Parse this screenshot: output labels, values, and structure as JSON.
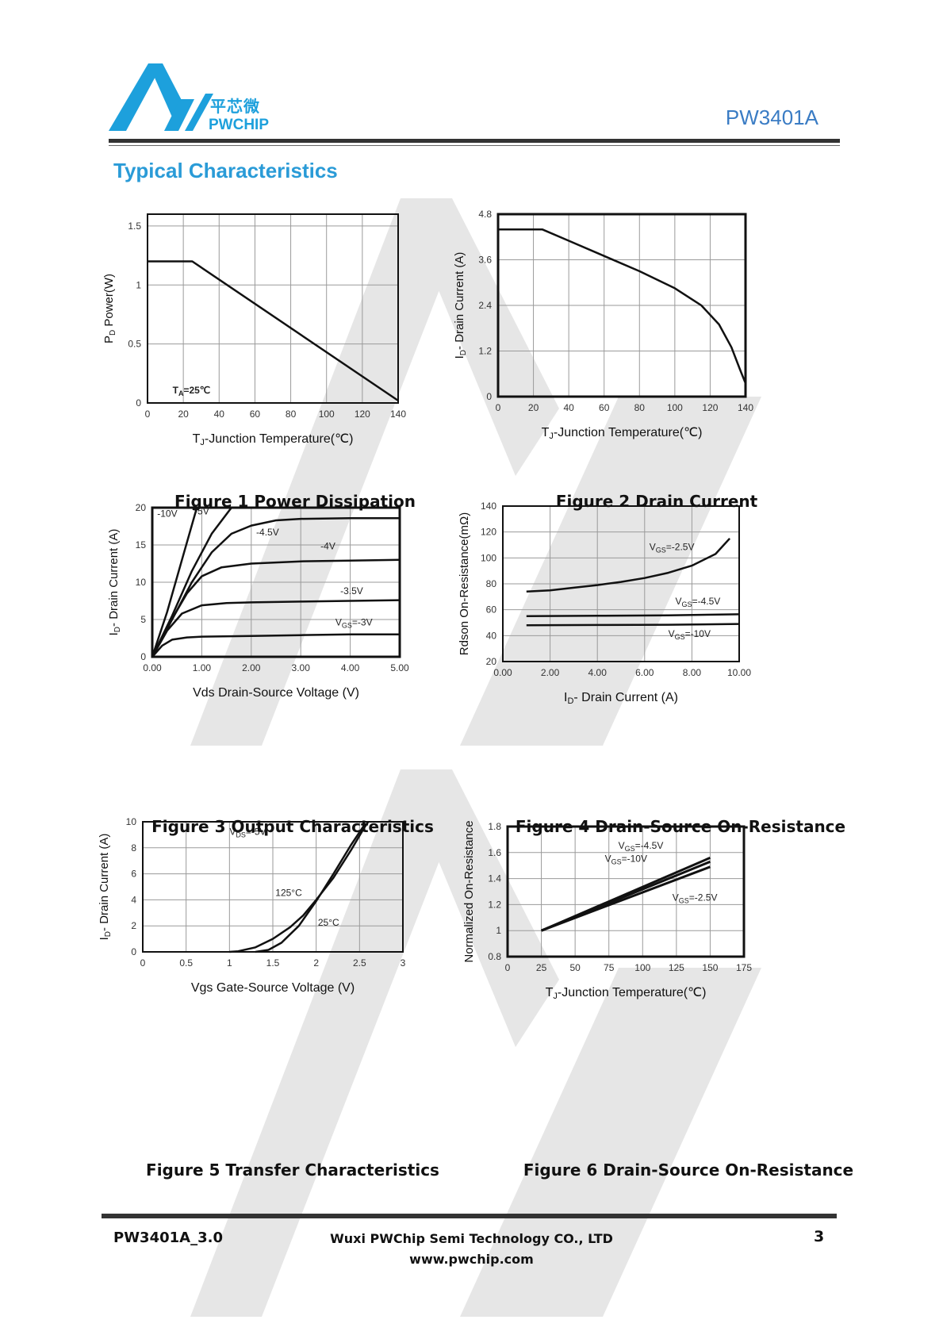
{
  "header": {
    "logo_cn": "平芯微",
    "logo_en": "PWCHIP",
    "part_number": "PW3401A",
    "brand_color": "#1da0dc",
    "part_color": "#3a7cc4"
  },
  "section_title": "Typical Characteristics",
  "footer": {
    "doc_id": "PW3401A_3.0",
    "company": "Wuxi PWChip Semi Technology CO., LTD",
    "url": "www.pwchip.com",
    "page": "3"
  },
  "chart_data": [
    {
      "id": "fig1",
      "type": "line",
      "caption": "Figure 1 Power Dissipation",
      "xlabel": "TJ-Junction Temperature(℃)",
      "ylabel": "PD Power(W)",
      "xlim": [
        0,
        140
      ],
      "ylim": [
        0,
        1.6
      ],
      "xticks": [
        0,
        20,
        40,
        60,
        80,
        100,
        120,
        140
      ],
      "xtick_labels": [
        "0",
        "20",
        "40",
        "60",
        "80",
        "100",
        "120",
        "140"
      ],
      "yticks": [
        0,
        0.5,
        1,
        1.5
      ],
      "ytick_labels": [
        "0",
        "0.5",
        "1",
        "1.5"
      ],
      "grid": true,
      "annotations": [
        {
          "text": "TA=25℃",
          "x": 14,
          "y": 0.08
        }
      ],
      "series": [
        {
          "points": [
            [
              0,
              1.2
            ],
            [
              25,
              1.2
            ],
            [
              140,
              0.02
            ]
          ]
        }
      ]
    },
    {
      "id": "fig2",
      "type": "line",
      "caption": "Figure 2 Drain Current",
      "xlabel": "TJ-Junction Temperature(℃)",
      "ylabel": "ID- Drain Current (A)",
      "xlim": [
        0,
        140
      ],
      "ylim": [
        0,
        4.8
      ],
      "xticks": [
        0,
        20,
        40,
        60,
        80,
        100,
        120,
        140
      ],
      "xtick_labels": [
        "0",
        "20",
        "40",
        "60",
        "80",
        "100",
        "120",
        "140"
      ],
      "yticks": [
        0,
        1.2,
        2.4,
        3.6,
        4.8
      ],
      "ytick_labels": [
        "0",
        "1.2",
        "2.4",
        "3.6",
        "4.8"
      ],
      "grid": true,
      "annotations": [],
      "series": [
        {
          "points": [
            [
              0,
              4.4
            ],
            [
              25,
              4.4
            ],
            [
              40,
              4.1
            ],
            [
              60,
              3.7
            ],
            [
              80,
              3.3
            ],
            [
              100,
              2.85
            ],
            [
              115,
              2.4
            ],
            [
              125,
              1.9
            ],
            [
              132,
              1.3
            ],
            [
              137,
              0.7
            ],
            [
              140,
              0.35
            ]
          ]
        }
      ]
    },
    {
      "id": "fig3",
      "type": "line",
      "caption": "Figure 3 Output Characteristics",
      "xlabel": "Vds Drain-Source Voltage (V)",
      "ylabel": "ID- Drain Current (A)",
      "xlim": [
        0,
        5
      ],
      "ylim": [
        0,
        20
      ],
      "xticks": [
        0,
        1,
        2,
        3,
        4,
        5
      ],
      "xtick_labels": [
        "0.00",
        "1.00",
        "2.00",
        "3.00",
        "4.00",
        "5.00"
      ],
      "yticks": [
        0,
        5,
        10,
        15,
        20
      ],
      "ytick_labels": [
        "0",
        "5",
        "10",
        "15",
        "20"
      ],
      "grid": true,
      "annotations": [
        {
          "text": "-10V",
          "x": 0.1,
          "y": 18.8
        },
        {
          "text": "-5V",
          "x": 0.85,
          "y": 19.1
        },
        {
          "text": "-4.5V",
          "x": 2.1,
          "y": 16.3
        },
        {
          "text": "-4V",
          "x": 3.4,
          "y": 14.4
        },
        {
          "text": "-3.5V",
          "x": 3.8,
          "y": 8.4
        },
        {
          "text": "VGS=-3V",
          "x": 3.7,
          "y": 4.2
        }
      ],
      "series": [
        {
          "name": "-10V",
          "points": [
            [
              0,
              0
            ],
            [
              0.3,
              6
            ],
            [
              0.6,
              13
            ],
            [
              0.9,
              20
            ]
          ]
        },
        {
          "name": "-5V",
          "points": [
            [
              0,
              0
            ],
            [
              0.4,
              5.5
            ],
            [
              0.8,
              11.5
            ],
            [
              1.2,
              16.5
            ],
            [
              1.6,
              20
            ]
          ]
        },
        {
          "name": "-4.5V",
          "points": [
            [
              0,
              0
            ],
            [
              0.4,
              5
            ],
            [
              0.8,
              10
            ],
            [
              1.2,
              14
            ],
            [
              1.6,
              16.5
            ],
            [
              2.0,
              17.6
            ],
            [
              2.5,
              18.3
            ],
            [
              3.0,
              18.5
            ],
            [
              4.0,
              18.6
            ],
            [
              5.0,
              18.6
            ]
          ]
        },
        {
          "name": "-4V",
          "points": [
            [
              0,
              0
            ],
            [
              0.35,
              4.5
            ],
            [
              0.7,
              8.5
            ],
            [
              1.0,
              10.8
            ],
            [
              1.4,
              12
            ],
            [
              2.0,
              12.5
            ],
            [
              3.0,
              12.8
            ],
            [
              4.0,
              12.9
            ],
            [
              5.0,
              13.0
            ]
          ]
        },
        {
          "name": "-3.5V",
          "points": [
            [
              0,
              0
            ],
            [
              0.3,
              3.5
            ],
            [
              0.6,
              5.8
            ],
            [
              1.0,
              6.9
            ],
            [
              1.5,
              7.2
            ],
            [
              2.0,
              7.3
            ],
            [
              3.0,
              7.4
            ],
            [
              4.0,
              7.5
            ],
            [
              5.0,
              7.6
            ]
          ]
        },
        {
          "name": "-3V",
          "points": [
            [
              0,
              0
            ],
            [
              0.2,
              1.5
            ],
            [
              0.4,
              2.3
            ],
            [
              0.7,
              2.6
            ],
            [
              1.0,
              2.7
            ],
            [
              2.0,
              2.8
            ],
            [
              3.0,
              2.9
            ],
            [
              4.0,
              3.0
            ],
            [
              5.0,
              3.0
            ]
          ]
        }
      ]
    },
    {
      "id": "fig4",
      "type": "line",
      "caption": "Figure 4 Drain-Source On-Resistance",
      "xlabel": "ID- Drain Current (A)",
      "ylabel": "Rdson On-Resistance(mΩ)",
      "xlim": [
        0,
        10
      ],
      "ylim": [
        20,
        140
      ],
      "xticks": [
        0,
        2,
        4,
        6,
        8,
        10
      ],
      "xtick_labels": [
        "0.00",
        "2.00",
        "4.00",
        "6.00",
        "8.00",
        "10.00"
      ],
      "yticks": [
        20,
        40,
        60,
        80,
        100,
        120,
        140
      ],
      "ytick_labels": [
        "20",
        "40",
        "60",
        "80",
        "100",
        "120",
        "140"
      ],
      "grid": true,
      "annotations": [
        {
          "text": "VGS=-2.5V",
          "x": 6.2,
          "y": 106
        },
        {
          "text": "VGS=-4.5V",
          "x": 7.3,
          "y": 64
        },
        {
          "text": "VGS=-10V",
          "x": 7.0,
          "y": 39
        }
      ],
      "series": [
        {
          "name": "VGS=-2.5V",
          "points": [
            [
              1,
              74
            ],
            [
              2,
              75
            ],
            [
              3,
              77
            ],
            [
              4,
              79
            ],
            [
              5,
              81.5
            ],
            [
              6,
              84.5
            ],
            [
              7,
              88.5
            ],
            [
              8,
              94
            ],
            [
              9,
              103
            ],
            [
              9.6,
              115
            ]
          ]
        },
        {
          "name": "VGS=-4.5V",
          "points": [
            [
              1,
              55
            ],
            [
              4,
              55.3
            ],
            [
              7,
              55.7
            ],
            [
              10,
              56.5
            ]
          ]
        },
        {
          "name": "VGS=-10V",
          "points": [
            [
              1,
              48
            ],
            [
              4,
              48.2
            ],
            [
              7,
              48.4
            ],
            [
              10,
              49
            ]
          ]
        }
      ]
    },
    {
      "id": "fig5",
      "type": "line",
      "caption": "Figure 5 Transfer Characteristics",
      "xlabel": "Vgs Gate-Source Voltage (V)",
      "ylabel": "ID- Drain Current (A)",
      "xlim": [
        0,
        3
      ],
      "ylim": [
        0,
        10
      ],
      "xticks": [
        0,
        0.5,
        1,
        1.5,
        2,
        2.5,
        3
      ],
      "xtick_labels": [
        "0",
        "0.5",
        "1",
        "1.5",
        "2",
        "2.5",
        "3"
      ],
      "yticks": [
        0,
        2,
        4,
        6,
        8,
        10
      ],
      "ytick_labels": [
        "0",
        "2",
        "4",
        "6",
        "8",
        "10"
      ],
      "grid": true,
      "annotations": [
        {
          "text": "VDS=-5V",
          "x": 1.0,
          "y": 9.0
        },
        {
          "text": "125°C",
          "x": 1.53,
          "y": 4.3
        },
        {
          "text": "25°C",
          "x": 2.02,
          "y": 2.0
        }
      ],
      "series": [
        {
          "name": "125°C",
          "points": [
            [
              1.0,
              0
            ],
            [
              1.1,
              0.05
            ],
            [
              1.3,
              0.35
            ],
            [
              1.5,
              1.0
            ],
            [
              1.7,
              1.9
            ],
            [
              1.85,
              2.8
            ],
            [
              2.0,
              4.0
            ],
            [
              2.2,
              5.7
            ],
            [
              2.4,
              7.8
            ],
            [
              2.55,
              9.5
            ],
            [
              2.6,
              10
            ]
          ]
        },
        {
          "name": "25°C",
          "points": [
            [
              1.3,
              0
            ],
            [
              1.45,
              0.15
            ],
            [
              1.6,
              0.7
            ],
            [
              1.8,
              2.0
            ],
            [
              2.0,
              3.9
            ],
            [
              2.2,
              6.0
            ],
            [
              2.4,
              8.2
            ],
            [
              2.55,
              9.7
            ]
          ]
        }
      ]
    },
    {
      "id": "fig6",
      "type": "line",
      "caption": "Figure 6 Drain-Source On-Resistance",
      "xlabel": "TJ-Junction Temperature(℃)",
      "ylabel": "Normalized On-Resistance",
      "xlim": [
        0,
        175
      ],
      "ylim": [
        0.8,
        1.8
      ],
      "xticks": [
        0,
        25,
        50,
        75,
        100,
        125,
        150,
        175
      ],
      "xtick_labels": [
        "0",
        "25",
        "50",
        "75",
        "100",
        "125",
        "150",
        "175"
      ],
      "yticks": [
        0.8,
        1,
        1.2,
        1.4,
        1.6,
        1.8
      ],
      "ytick_labels": [
        "0.8",
        "1",
        "1.2",
        "1.4",
        "1.6",
        "1.8"
      ],
      "grid": true,
      "annotations": [
        {
          "text": "VGS=-4.5V",
          "x": 82,
          "y": 1.63
        },
        {
          "text": "VGS=-10V",
          "x": 72,
          "y": 1.53
        },
        {
          "text": "VGS=-2.5V",
          "x": 122,
          "y": 1.23
        }
      ],
      "series": [
        {
          "name": "VGS=-4.5V",
          "points": [
            [
              25,
              1.0
            ],
            [
              150,
              1.56
            ]
          ]
        },
        {
          "name": "VGS=-10V",
          "points": [
            [
              25,
              1.0
            ],
            [
              150,
              1.53
            ]
          ]
        },
        {
          "name": "VGS=-2.5V",
          "points": [
            [
              25,
              1.0
            ],
            [
              150,
              1.49
            ]
          ]
        }
      ]
    }
  ]
}
